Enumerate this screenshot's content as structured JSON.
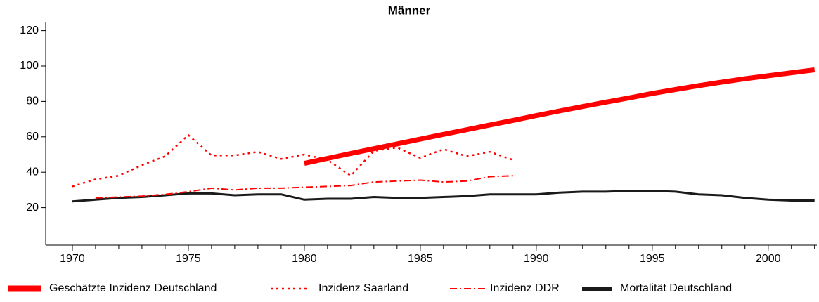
{
  "chart_data": {
    "type": "line",
    "title": "Männer",
    "x": [
      1970,
      1971,
      1972,
      1973,
      1974,
      1975,
      1976,
      1977,
      1978,
      1979,
      1980,
      1981,
      1982,
      1983,
      1984,
      1985,
      1986,
      1987,
      1988,
      1989,
      1990,
      1991,
      1992,
      1993,
      1994,
      1995,
      1996,
      1997,
      1998,
      1999,
      2000,
      2001,
      2002
    ],
    "series": [
      {
        "name": "Geschätzte Inzidenz Deutschland",
        "color": "#ff0000",
        "line_style": "thick",
        "values": [
          null,
          null,
          null,
          null,
          null,
          null,
          null,
          null,
          null,
          null,
          45,
          47.8,
          50.6,
          53.3,
          56,
          58.7,
          61.4,
          64,
          66.7,
          69.3,
          72,
          74.6,
          77.1,
          79.6,
          82,
          84.5,
          86.7,
          88.9,
          90.9,
          92.8,
          94.5,
          96.2,
          97.8
        ]
      },
      {
        "name": "Inzidenz Saarland",
        "color": "#ff0000",
        "line_style": "dotted",
        "values": [
          32,
          36,
          38,
          44,
          49,
          61,
          49.5,
          49.5,
          51.5,
          47.5,
          50,
          47,
          38,
          52,
          54,
          48,
          53,
          49,
          51.5,
          47,
          null,
          null,
          null,
          null,
          null,
          null,
          null,
          null,
          null,
          null,
          null,
          null,
          null
        ]
      },
      {
        "name": "Inzidenz DDR",
        "color": "#ff0000",
        "line_style": "dash-dot",
        "values": [
          null,
          25.5,
          26,
          26.5,
          27.5,
          29,
          31,
          30,
          31,
          31,
          31.5,
          32,
          32.5,
          34.5,
          35,
          35.5,
          34.5,
          35,
          37.5,
          38,
          null,
          null,
          null,
          null,
          null,
          null,
          null,
          null,
          null,
          null,
          null,
          null,
          null
        ]
      },
      {
        "name": "Mortalität Deutschland",
        "color": "#1a1a1a",
        "line_style": "solid",
        "values": [
          23.5,
          24.5,
          25.5,
          26,
          27,
          28,
          28,
          27,
          27.5,
          27.5,
          24.5,
          25,
          25,
          26,
          25.5,
          25.5,
          26,
          26.5,
          27.5,
          27.5,
          27.5,
          28.5,
          29,
          29,
          29.5,
          29.5,
          29,
          27.5,
          27,
          25.5,
          24.5,
          24,
          24
        ]
      }
    ],
    "xlim": [
      1968.85,
      2002.1
    ],
    "xticks": [
      1970,
      1975,
      1980,
      1985,
      1990,
      1995,
      2000
    ],
    "ylim": [
      0,
      125
    ],
    "yticks": [
      20,
      40,
      60,
      80,
      100,
      120
    ],
    "legend": "bottom"
  }
}
